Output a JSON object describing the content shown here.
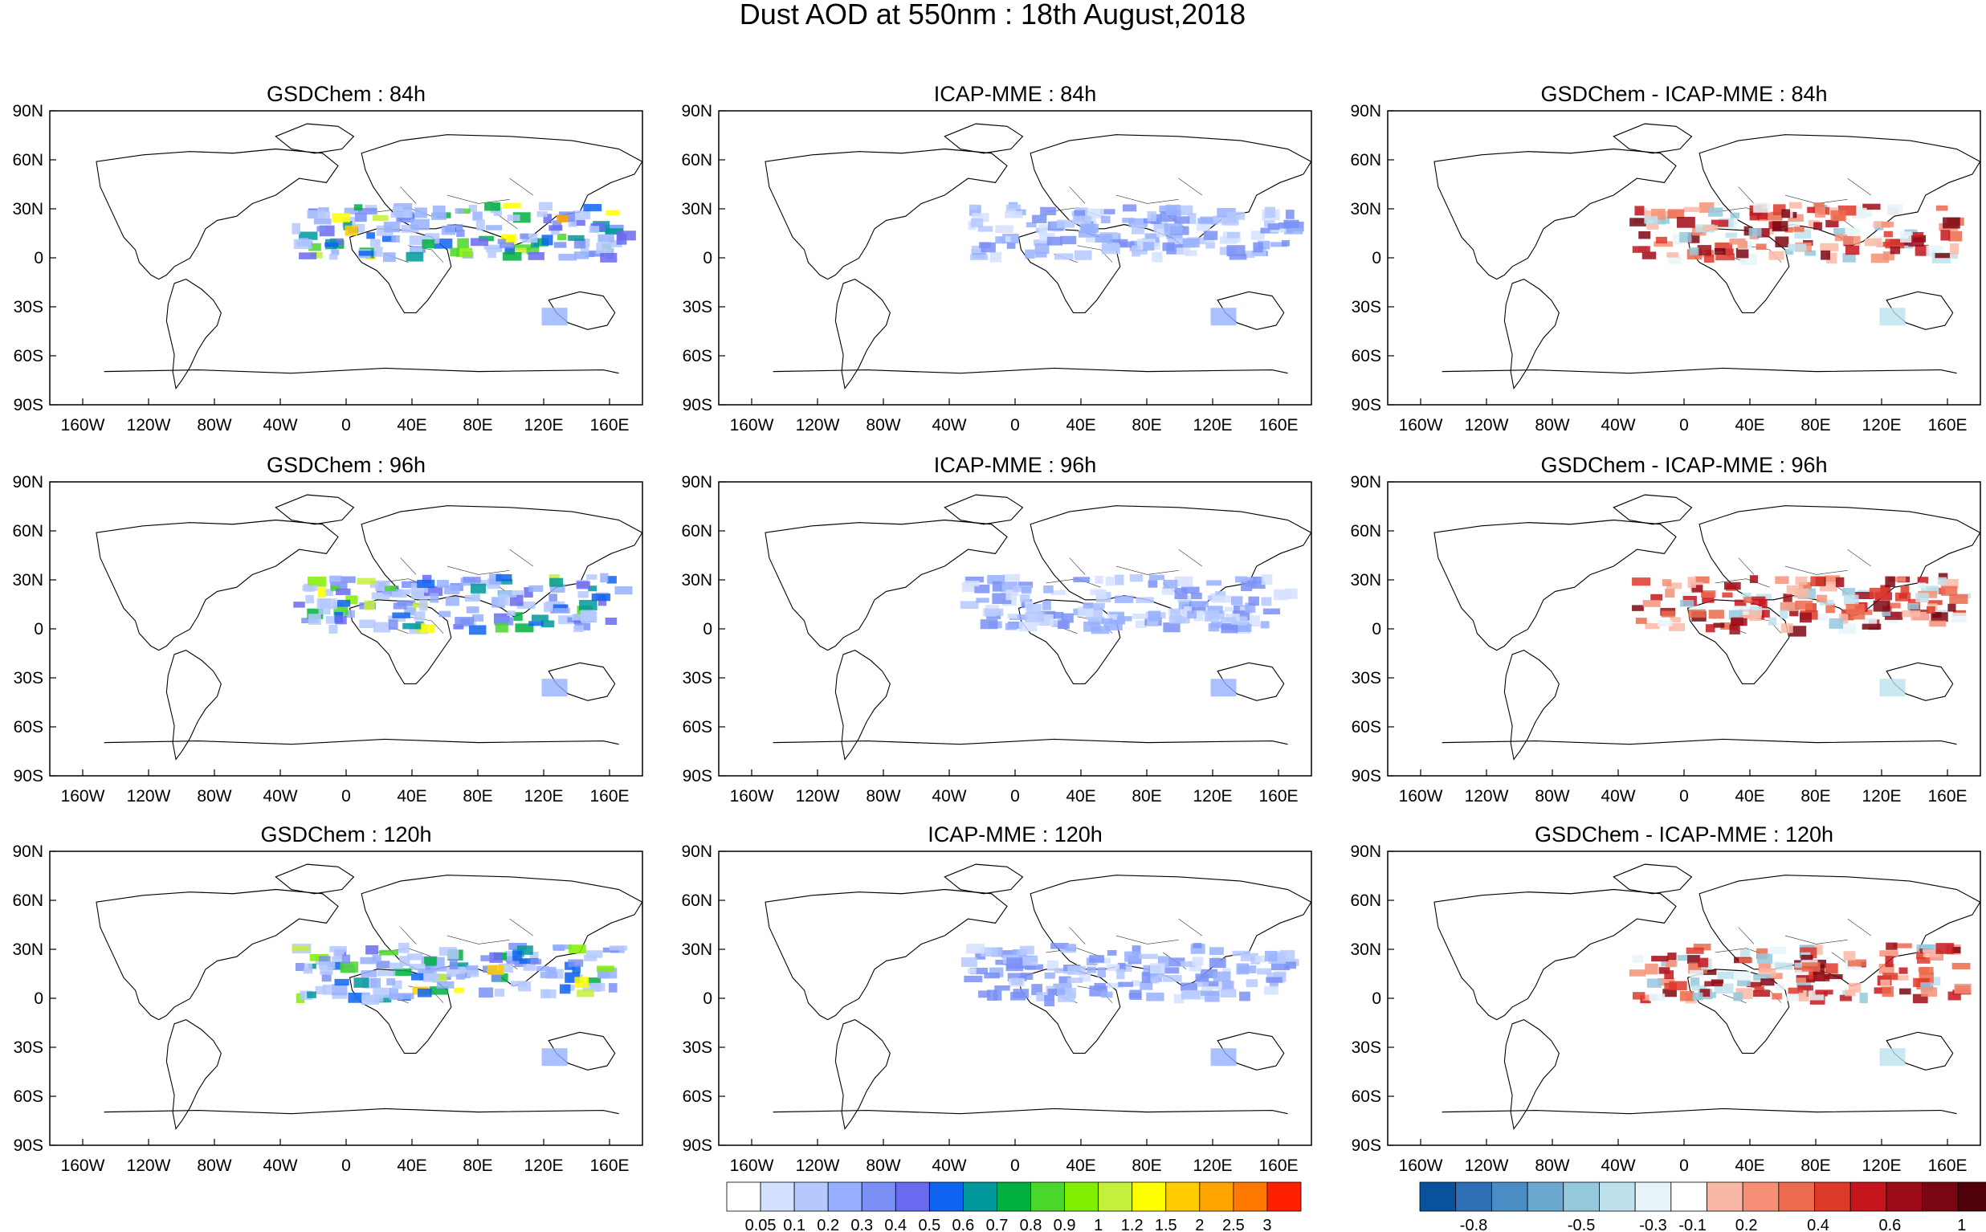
{
  "figure_title": "Dust AOD at 550nm : 18th August,2018",
  "panel_titles": [
    [
      "GSDChem : 84h",
      "ICAP-MME : 84h",
      "GSDChem - ICAP-MME : 84h"
    ],
    [
      "GSDChem : 96h",
      "ICAP-MME : 96h",
      "GSDChem - ICAP-MME : 96h"
    ],
    [
      "GSDChem : 120h",
      "ICAP-MME : 120h",
      "GSDChem - ICAP-MME : 120h"
    ]
  ],
  "lat_labels": [
    "90N",
    "60N",
    "30N",
    "0",
    "30S",
    "60S",
    "90S"
  ],
  "lon_labels": [
    "160W",
    "120W",
    "80W",
    "40W",
    "0",
    "40E",
    "80E",
    "120E",
    "160E"
  ],
  "colorbar_aod": {
    "labels": [
      "0.05",
      "0.1",
      "0.2",
      "0.3",
      "0.4",
      "0.5",
      "0.6",
      "0.7",
      "0.8",
      "0.9",
      "1",
      "1.2",
      "1.5",
      "2",
      "2.5",
      "3"
    ],
    "colors": [
      "#ffffff",
      "#d4e0ff",
      "#b5c9ff",
      "#96b0ff",
      "#7a90f5",
      "#6a6af0",
      "#0e64f0",
      "#00989a",
      "#00b040",
      "#4ad62a",
      "#80ee00",
      "#c4f03a",
      "#ffff00",
      "#ffcc00",
      "#ffa500",
      "#ff7800",
      "#ff2000"
    ]
  },
  "colorbar_diff": {
    "labels": [
      "-0.8",
      "-0.5",
      "-0.3",
      "-0.1",
      "0.2",
      "0.4",
      "0.6",
      "1"
    ],
    "colors": [
      "#08519c",
      "#2f6fb5",
      "#4a8cc4",
      "#6aa8d0",
      "#95c8dd",
      "#bde2ec",
      "#e6f4f8",
      "#ffffff",
      "#f9b8a6",
      "#f59077",
      "#ec6a4d",
      "#dd3a2c",
      "#c4161c",
      "#9d0b18",
      "#7a0612",
      "#4f0008"
    ]
  }
}
